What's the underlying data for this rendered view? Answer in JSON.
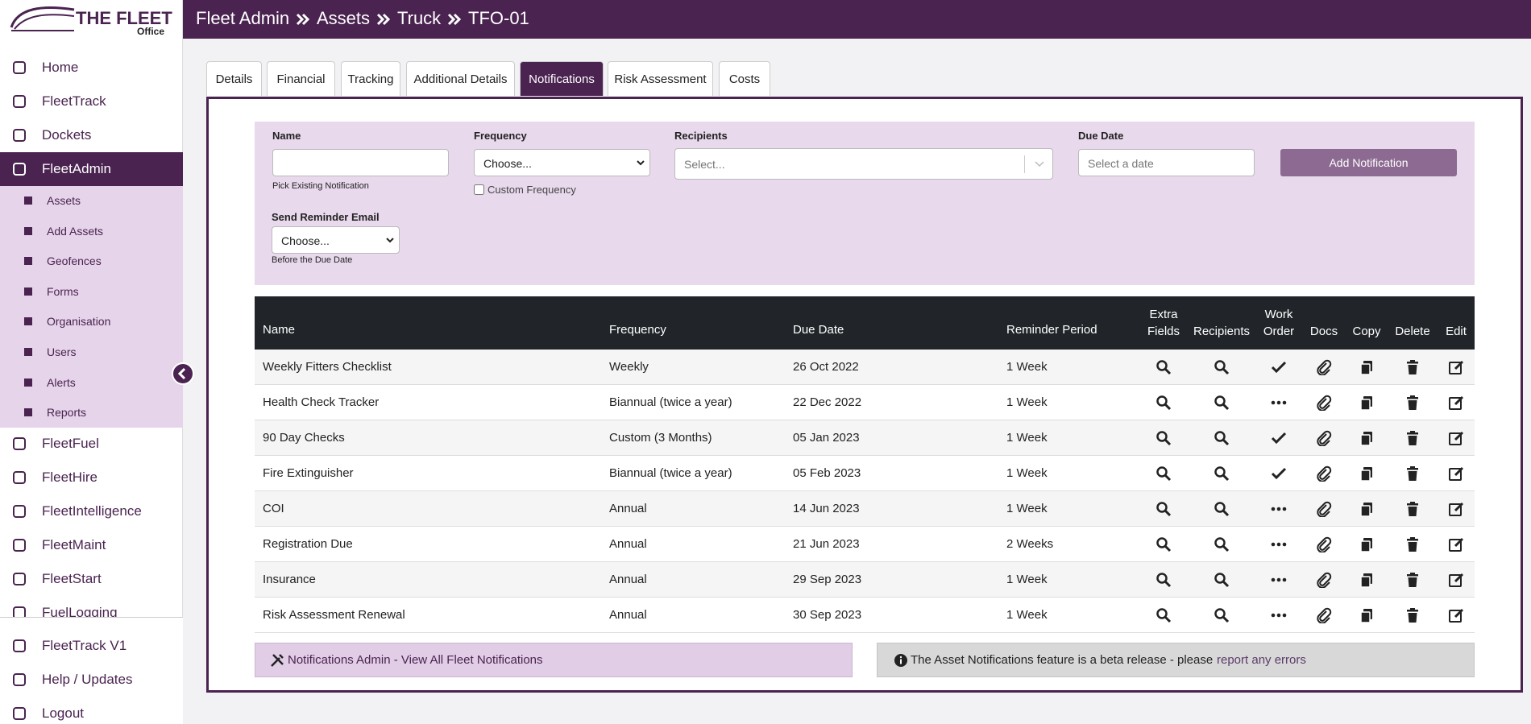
{
  "logo": {
    "title": "THE FLEET",
    "subtitle": "Office"
  },
  "breadcrumb": [
    "Fleet Admin",
    "Assets",
    "Truck",
    "TFO-01"
  ],
  "nav": [
    {
      "label": "Home"
    },
    {
      "label": "FleetTrack"
    },
    {
      "label": "Dockets"
    },
    {
      "label": "FleetAdmin",
      "active": true
    }
  ],
  "sub_nav": [
    "Assets",
    "Add Assets",
    "Geofences",
    "Forms",
    "Organisation",
    "Users",
    "Alerts",
    "Reports"
  ],
  "nav_more": [
    "FleetFuel",
    "FleetHire",
    "FleetIntelligence",
    "FleetMaint",
    "FleetStart",
    "FuelLogging"
  ],
  "nav_bottom": [
    "FleetTrack V1",
    "Help / Updates",
    "Logout"
  ],
  "tabs": [
    {
      "label": "Details"
    },
    {
      "label": "Financial"
    },
    {
      "label": "Tracking"
    },
    {
      "label": "Additional Details"
    },
    {
      "label": "Notifications",
      "active": true
    },
    {
      "label": "Risk Assessment"
    },
    {
      "label": "Costs"
    }
  ],
  "form": {
    "name_label": "Name",
    "name_help": "Pick Existing Notification",
    "frequency_label": "Frequency",
    "frequency_placeholder": "Choose...",
    "custom_frequency": "Custom Frequency",
    "recipients_label": "Recipients",
    "recipients_placeholder": "Select...",
    "due_date_label": "Due Date",
    "due_date_placeholder": "Select a date",
    "add_button": "Add Notification",
    "reminder_label": "Send Reminder Email",
    "reminder_placeholder": "Choose...",
    "reminder_help": "Before the Due Date"
  },
  "table": {
    "headers": [
      "Name",
      "Frequency",
      "Due Date",
      "Reminder Period",
      "Extra Fields",
      "Recipients",
      "Work Order",
      "Docs",
      "Copy",
      "Delete",
      "Edit"
    ],
    "rows": [
      [
        "Weekly Fitters Checklist",
        "Weekly",
        "26 Oct 2022",
        "1 Week"
      ],
      [
        "Health Check Tracker",
        "Biannual (twice a year)",
        "22 Dec 2022",
        "1 Week"
      ],
      [
        "90 Day Checks",
        "Custom (3 Months)",
        "05 Jan 2023",
        "1 Week"
      ],
      [
        "Fire Extinguisher",
        "Biannual (twice a year)",
        "05 Feb 2023",
        "1 Week"
      ],
      [
        "COI",
        "Annual",
        "14 Jun 2023",
        "1 Week"
      ],
      [
        "Registration Due",
        "Annual",
        "21 Jun 2023",
        "2 Weeks"
      ],
      [
        "Insurance",
        "Annual",
        "29 Sep 2023",
        "1 Week"
      ],
      [
        "Risk Assessment Renewal",
        "Annual",
        "30 Sep 2023",
        "1 Week"
      ]
    ],
    "work_order": [
      "check",
      "more",
      "check",
      "check",
      "more",
      "more",
      "more",
      "more"
    ]
  },
  "footer": {
    "admin_link": "Notifications Admin - View All Fleet Notifications",
    "beta_text": "The Asset Notifications feature is a beta release - please",
    "beta_link": "report any errors"
  }
}
